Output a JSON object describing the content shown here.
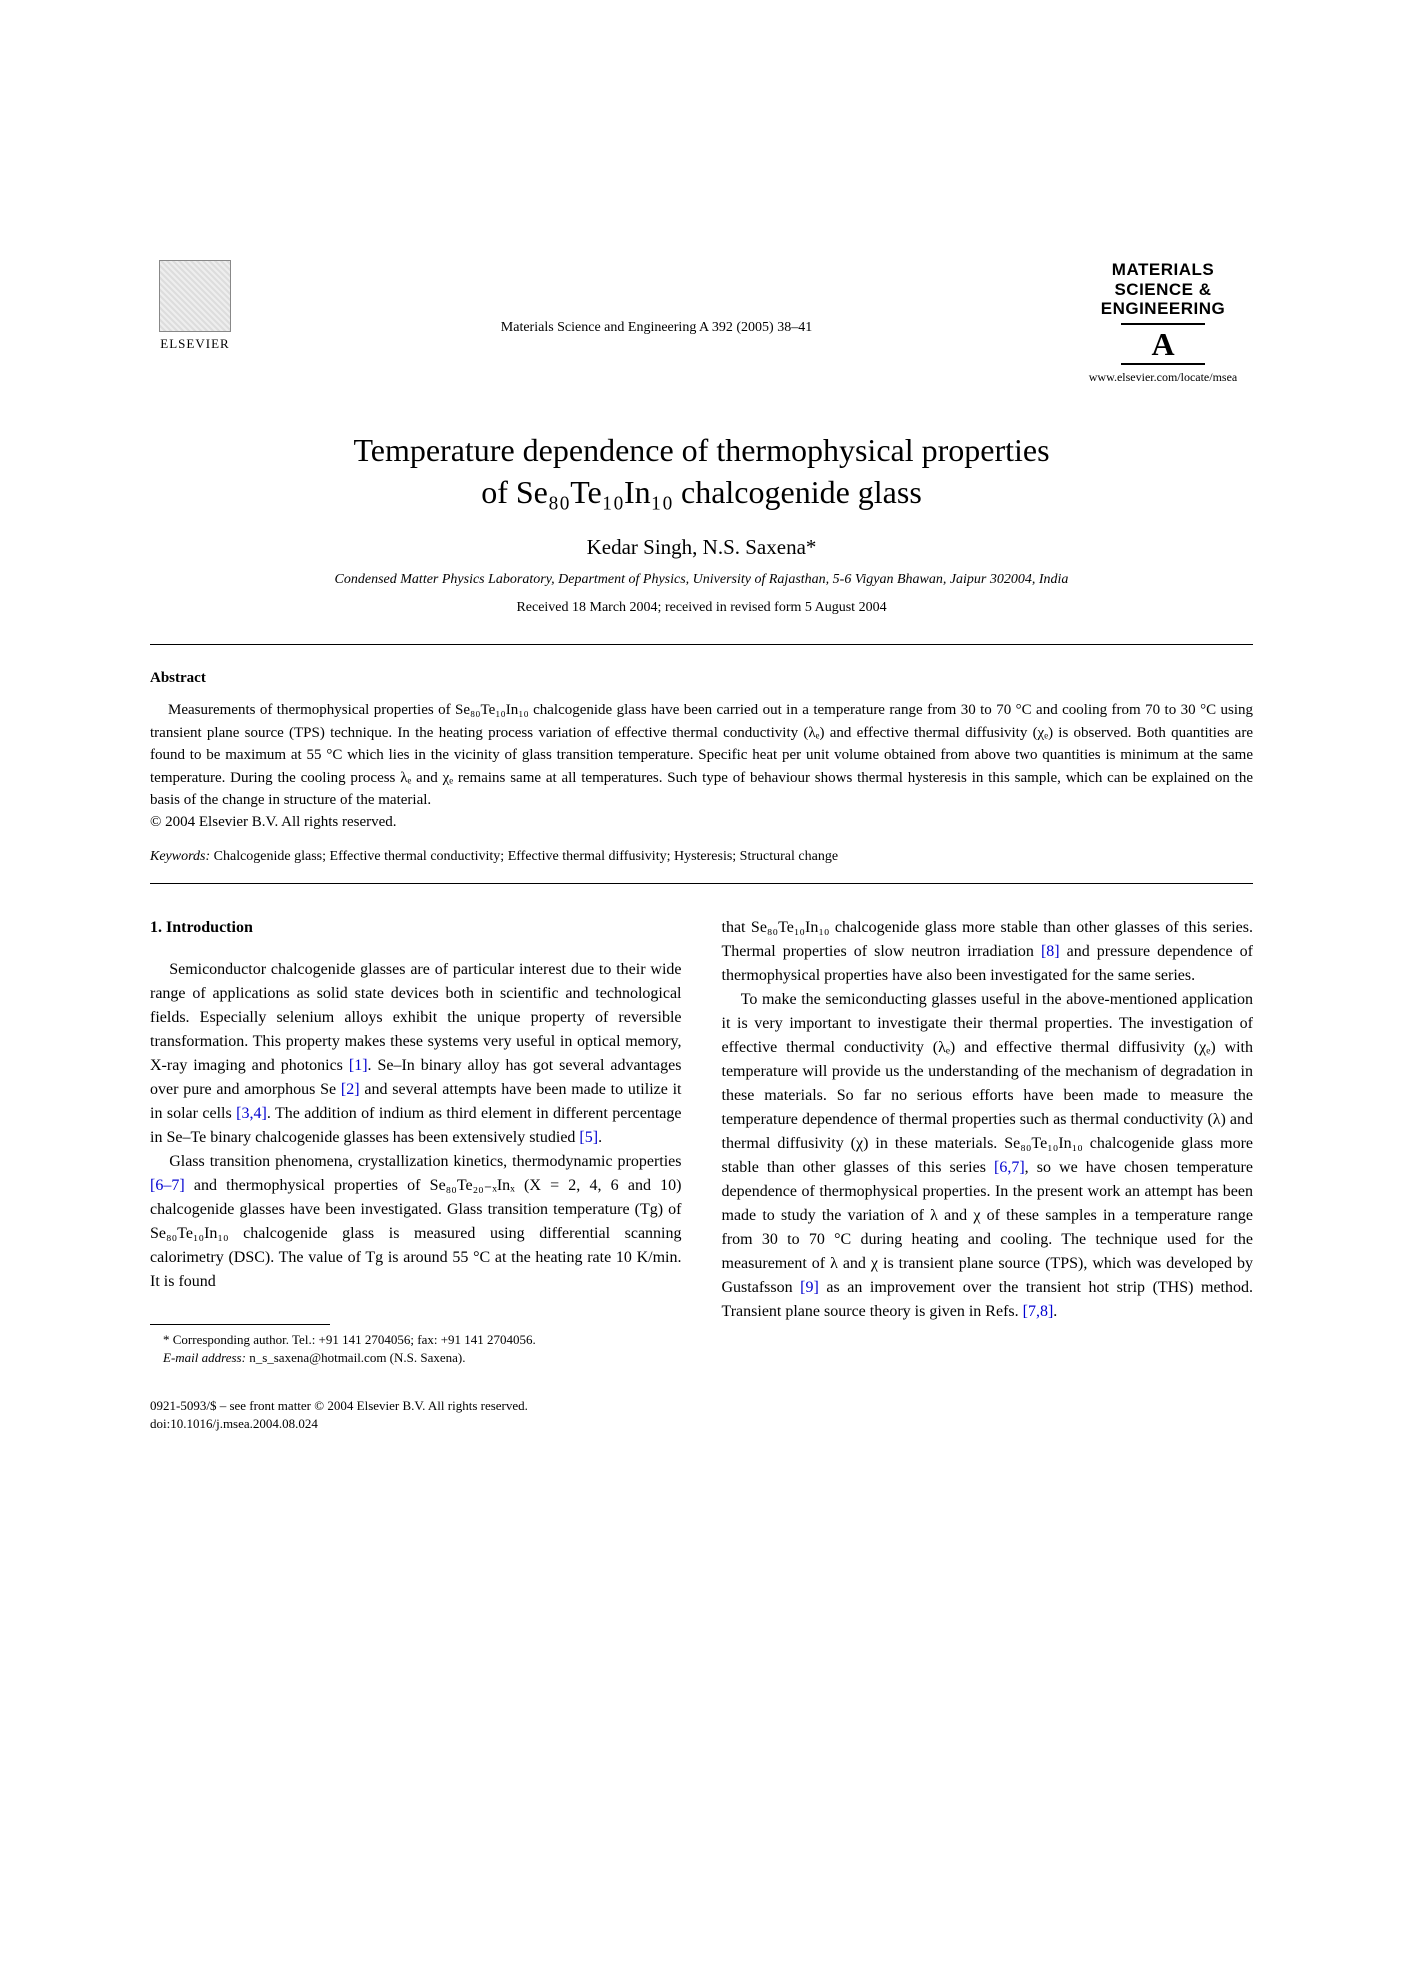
{
  "publisher": "ELSEVIER",
  "journal_ref": "Materials Science and Engineering A 392 (2005) 38–41",
  "journal_logo": {
    "line1": "MATERIALS",
    "line2": "SCIENCE &",
    "line3": "ENGINEERING",
    "letter": "A",
    "url": "www.elsevier.com/locate/msea"
  },
  "title_line1": "Temperature dependence of thermophysical properties",
  "title_line2": "of Se₈₀Te₁₀In₁₀ chalcogenide glass",
  "authors": "Kedar Singh, N.S. Saxena*",
  "affiliation": "Condensed Matter Physics Laboratory, Department of Physics, University of Rajasthan, 5-6 Vigyan Bhawan, Jaipur 302004, India",
  "dates": "Received 18 March 2004; received in revised form 5 August 2004",
  "abstract": {
    "heading": "Abstract",
    "body": "Measurements of thermophysical properties of Se₈₀Te₁₀In₁₀ chalcogenide glass have been carried out in a temperature range from 30 to 70 °C and cooling from 70 to 30 °C using transient plane source (TPS) technique. In the heating process variation of effective thermal conductivity (λₑ) and effective thermal diffusivity (χₑ) is observed. Both quantities are found to be maximum at 55 °C which lies in the vicinity of glass transition temperature. Specific heat per unit volume obtained from above two quantities is minimum at the same temperature. During the cooling process λₑ and χₑ remains same at all temperatures. Such type of behaviour shows thermal hysteresis in this sample, which can be explained on the basis of the change in structure of the material.",
    "copyright": "© 2004 Elsevier B.V. All rights reserved."
  },
  "keywords": {
    "label": "Keywords:",
    "text": "  Chalcogenide glass; Effective thermal conductivity; Effective thermal diffusivity; Hysteresis; Structural change"
  },
  "section1_head": "1. Introduction",
  "col_left": {
    "p1a": "Semiconductor chalcogenide glasses are of particular interest due to their wide range of applications as solid state devices both in scientific and technological fields. Especially selenium alloys exhibit the unique property of reversible transformation. This property makes these systems very useful in optical memory, X-ray imaging and photonics ",
    "r1": "[1]",
    "p1b": ". Se–In binary alloy has got several advantages over pure and amorphous Se ",
    "r2": "[2]",
    "p1c": " and several attempts have been made to utilize it in solar cells ",
    "r3": "[3,4]",
    "p1d": ". The addition of indium as third element in different percentage in Se–Te binary chalcogenide glasses has been extensively studied ",
    "r4": "[5]",
    "p1e": ".",
    "p2a": "Glass transition phenomena, crystallization kinetics, thermodynamic properties ",
    "r5": "[6–7]",
    "p2b": " and thermophysical properties of Se₈₀Te₂₀₋ₓInₓ (X = 2, 4, 6 and 10) chalcogenide glasses have been investigated. Glass transition temperature (Tg) of Se₈₀Te₁₀In₁₀ chalcogenide glass is measured using differential scanning calorimetry (DSC). The value of Tg is around 55 °C at the heating rate 10 K/min. It is found"
  },
  "col_right": {
    "p1a": "that Se₈₀Te₁₀In₁₀ chalcogenide glass more stable than other glasses of this series. Thermal properties of slow neutron irradiation ",
    "r1": "[8]",
    "p1b": " and pressure dependence of thermophysical properties have also been investigated for the same series.",
    "p2a": "To make the semiconducting glasses useful in the above-mentioned application it is very important to investigate their thermal properties. The investigation of effective thermal conductivity (λₑ) and effective thermal diffusivity (χₑ) with temperature will provide us the understanding of the mechanism of degradation in these materials. So far no serious efforts have been made to measure the temperature dependence of thermal properties such as thermal conductivity (λ) and thermal diffusivity (χ) in these materials. Se₈₀Te₁₀In₁₀ chalcogenide glass more stable than other glasses of this series ",
    "r2": "[6,7]",
    "p2b": ", so we have chosen temperature dependence of thermophysical properties. In the present work an attempt has been made to study the variation of λ and χ of these samples in a temperature range from 30 to 70 °C during heating and cooling. The technique used for the measurement of λ and χ is transient plane source (TPS), which was developed by Gustafsson ",
    "r3": "[9]",
    "p2c": " as an improvement over the transient hot strip (THS) method. Transient plane source theory is given in Refs. ",
    "r4": "[7,8]",
    "p2d": "."
  },
  "footnote": {
    "corr": "* Corresponding author. Tel.: +91 141 2704056; fax: +91 141 2704056.",
    "email_label": "E-mail address:",
    "email": " n_s_saxena@hotmail.com (N.S. Saxena)."
  },
  "footer": {
    "line1": "0921-5093/$ – see front matter © 2004 Elsevier B.V. All rights reserved.",
    "line2": "doi:10.1016/j.msea.2004.08.024"
  }
}
